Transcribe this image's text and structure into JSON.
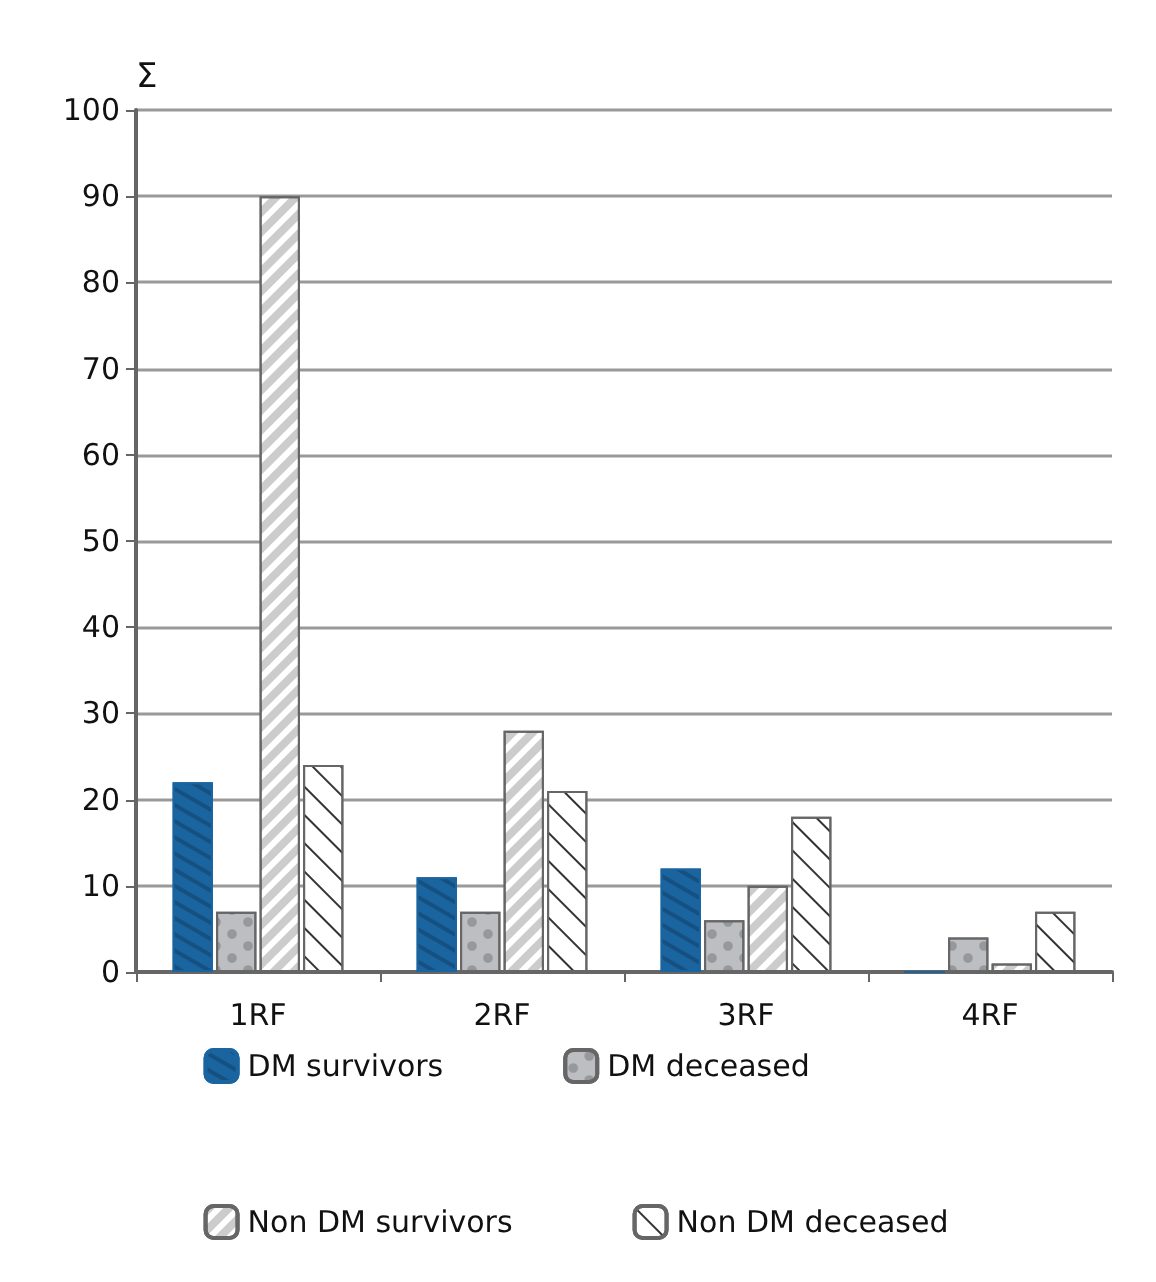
{
  "chart_data": {
    "type": "bar",
    "ylabel": "Σ",
    "categories": [
      "1RF",
      "2RF",
      "3RF",
      "4RF"
    ],
    "series": [
      {
        "name": "DM survivors",
        "color": "#1a64a0",
        "values": [
          22,
          11,
          12,
          0
        ]
      },
      {
        "name": "DM deceased",
        "color": "#bdbec2",
        "values": [
          7,
          7,
          6,
          4
        ]
      },
      {
        "name": "Non DM survivors",
        "color": "#ffffff",
        "values": [
          90,
          28,
          10,
          1
        ]
      },
      {
        "name": "Non DM deceased",
        "color": "#ffffff",
        "values": [
          24,
          21,
          18,
          7
        ]
      }
    ],
    "ylim": [
      0,
      100
    ],
    "yticks": [
      0,
      10,
      20,
      30,
      40,
      50,
      60,
      70,
      80,
      90,
      100
    ],
    "grid": "y",
    "legend": "bottom"
  }
}
